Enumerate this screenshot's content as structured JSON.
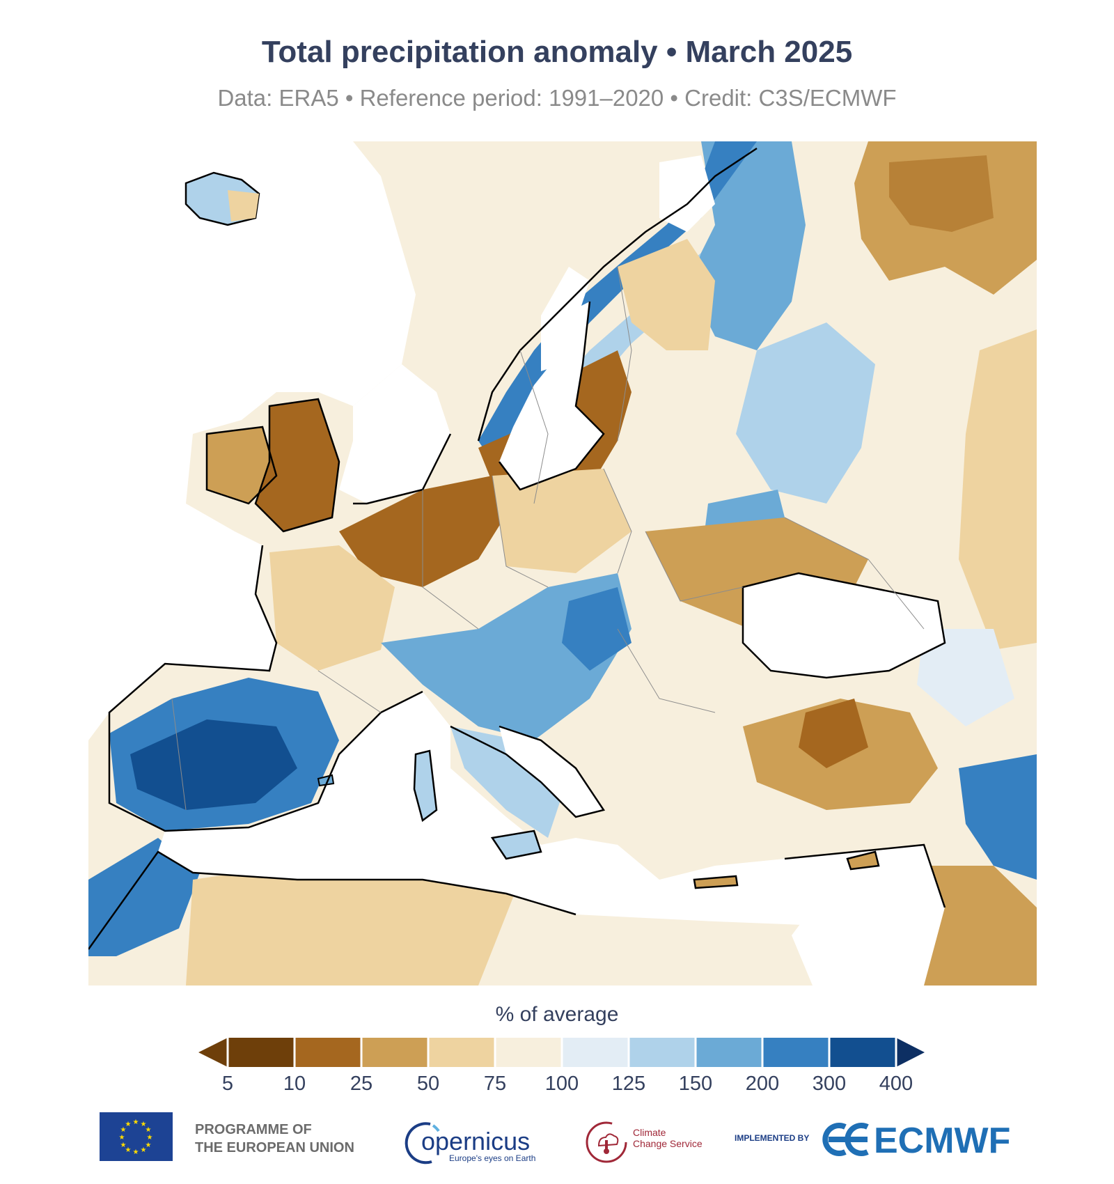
{
  "title": "Total precipitation anomaly • March 2025",
  "subtitle": "Data: ERA5 • Reference period: 1991–2020 • Credit: C3S/ECMWF",
  "colors": {
    "very_dry": "#6e3f0a",
    "dry2": "#a5671f",
    "dry3": "#cd9f55",
    "dry4": "#eed3a0",
    "near": "#f7efdd",
    "wet1": "#e3edf5",
    "wet2": "#afd2ea",
    "wet3": "#6baad6",
    "wet4": "#3680c1",
    "wet5": "#124f90",
    "coast": "#000000",
    "border": "#8c8c8c"
  },
  "legend": {
    "title": "% of average",
    "ticks": [
      "5",
      "10",
      "25",
      "50",
      "75",
      "100",
      "125",
      "150",
      "200",
      "300",
      "400"
    ]
  },
  "footer": {
    "eu_line1": "PROGRAMME OF",
    "eu_line2": "THE EUROPEAN UNION",
    "copernicus": "opernicus",
    "copernicus_tag": "Europe's eyes on Earth",
    "ccs_line1": "Climate",
    "ccs_line2": "Change Service",
    "implemented_by": "IMPLEMENTED BY",
    "ecmwf": "ECMWF"
  }
}
